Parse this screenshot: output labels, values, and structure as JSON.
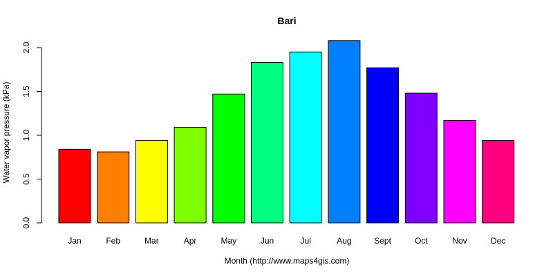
{
  "chart_data": {
    "type": "bar",
    "title": "Bari",
    "xlabel": "Month (http://www.maps4gis.com)",
    "ylabel": "Water vapor pressure (kPa)",
    "categories": [
      "Jan",
      "Feb",
      "Mar",
      "Apr",
      "May",
      "Jun",
      "Jul",
      "Aug",
      "Sept",
      "Oct",
      "Nov",
      "Dec"
    ],
    "values": [
      0.84,
      0.81,
      0.94,
      1.09,
      1.47,
      1.83,
      1.95,
      2.08,
      1.77,
      1.48,
      1.17,
      0.94
    ],
    "colors": [
      "#FF0000",
      "#FF8000",
      "#FFFF00",
      "#80FF00",
      "#00FF00",
      "#00FF80",
      "#00FFFF",
      "#0080FF",
      "#0000FF",
      "#8000FF",
      "#FF00FF",
      "#FF0080"
    ],
    "yticks": [
      "0.0",
      "0.5",
      "1.0",
      "1.5",
      "2.0"
    ],
    "ylim": [
      0,
      2.0
    ],
    "grid": false,
    "legend": "none"
  }
}
